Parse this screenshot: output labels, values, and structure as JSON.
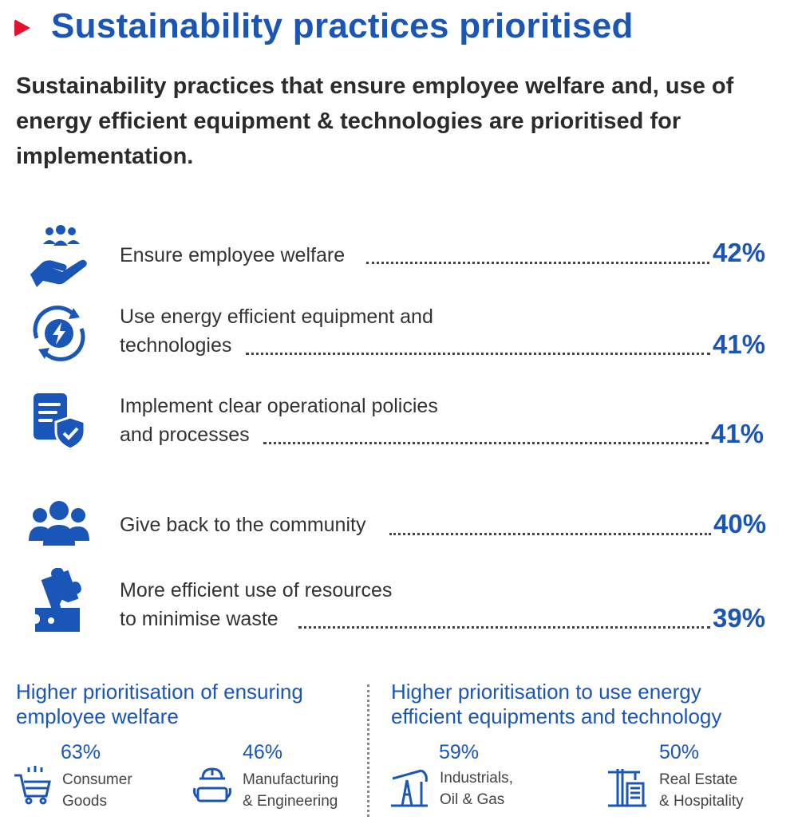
{
  "title": "Sustainability practices prioritised",
  "subtitle": "Sustainability practices that ensure employee welfare and, use of energy efficient equipment & technologies are prioritised for implementation.",
  "practices": [
    {
      "line1": "Ensure employee welfare",
      "line2": "",
      "percent": "42%",
      "icon": "people-hand-icon"
    },
    {
      "line1": "Use energy efficient equipment and",
      "line2": "technologies",
      "percent": "41%",
      "icon": "energy-cycle-icon"
    },
    {
      "line1": "Implement clear operational policies",
      "line2": "and processes",
      "percent": "41%",
      "icon": "policy-shield-icon"
    },
    {
      "line1": "Give back to the community",
      "line2": "",
      "percent": "40%",
      "icon": "community-group-icon"
    },
    {
      "line1": "More efficient use of resources",
      "line2": "to minimise waste",
      "percent": "39%",
      "icon": "puzzle-pieces-icon"
    }
  ],
  "welfare": {
    "heading_line1": "Higher prioritisation of ensuring",
    "heading_line2": "employee welfare",
    "stats": [
      {
        "percent": "63%",
        "line1": "Consumer",
        "line2": "Goods",
        "icon": "shopping-cart-icon"
      },
      {
        "percent": "46%",
        "line1": "Manufacturing",
        "line2": "& Engineering",
        "icon": "worker-helmet-icon"
      }
    ]
  },
  "energy": {
    "heading_line1": "Higher prioritisation to use energy",
    "heading_line2": "efficient equipments and technology",
    "stats": [
      {
        "percent": "59%",
        "line1": "Industrials,",
        "line2": "Oil & Gas",
        "icon": "oil-pump-icon"
      },
      {
        "percent": "50%",
        "line1": "Real Estate",
        "line2": "& Hospitality",
        "icon": "building-crane-icon"
      }
    ]
  },
  "colors": {
    "accent": "#1a55b8",
    "marker": "#e3122d",
    "text": "#2b2b2b"
  }
}
